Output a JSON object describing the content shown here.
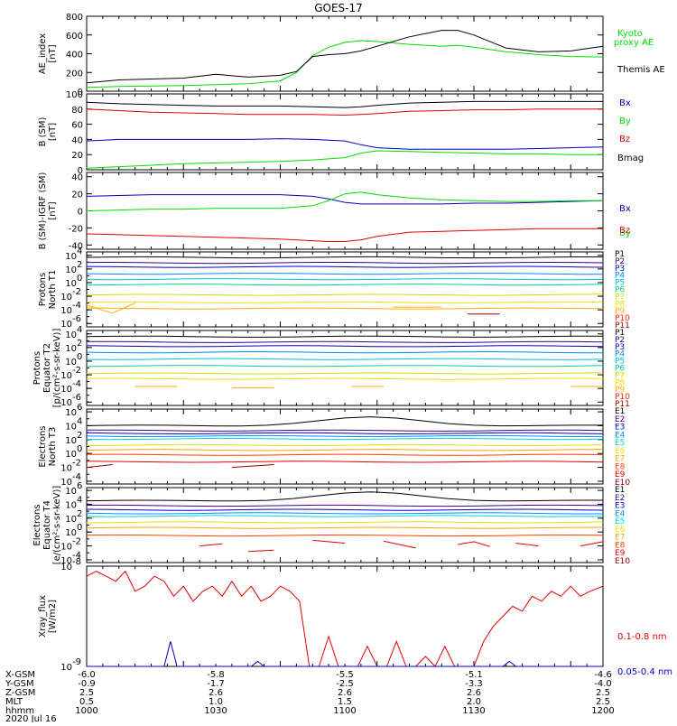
{
  "title": "GOES-17",
  "colors": {
    "black": "#000000",
    "red": "#e00000",
    "green": "#00dd00",
    "blue": "#0000c0",
    "P1": "#000000",
    "P2": "#3a0080",
    "P3": "#0000c0",
    "P4": "#0088ff",
    "P5": "#00c0e0",
    "P6": "#00d0a0",
    "P7": "#c8e000",
    "P8": "#f0e000",
    "P9": "#ffb000",
    "P10": "#ff2000",
    "P11": "#a00000",
    "E1": "#000000",
    "E2": "#4a0080",
    "E3": "#0000d0",
    "E4": "#0090ff",
    "E5": "#00d0e0",
    "E6": "#e8e000",
    "E7": "#ffa000",
    "E8": "#ff4000",
    "E9": "#e00000",
    "E10": "#900000"
  },
  "chart_data": [
    {
      "type": "line",
      "panel": "ae",
      "ylabel": [
        "AE_index",
        "[nT]"
      ],
      "ylim": [
        0,
        800
      ],
      "yticks": [
        "0",
        "200",
        "400",
        "600",
        "800"
      ],
      "x_minutes": [
        0,
        10,
        20,
        30,
        40,
        50,
        60,
        65,
        70,
        75,
        80,
        85,
        90,
        100,
        110,
        115,
        120,
        130,
        140,
        150,
        160
      ],
      "series": [
        {
          "name": "Kyoto proxy AE",
          "color": "#00dd00",
          "values": [
            40,
            50,
            55,
            60,
            70,
            80,
            110,
            200,
            380,
            470,
            520,
            540,
            530,
            500,
            480,
            490,
            470,
            420,
            390,
            370,
            365
          ]
        },
        {
          "name": "Themis AE",
          "color": "#000000",
          "values": [
            90,
            120,
            130,
            140,
            180,
            150,
            170,
            210,
            370,
            390,
            400,
            430,
            480,
            580,
            650,
            650,
            600,
            460,
            420,
            430,
            480
          ]
        }
      ]
    },
    {
      "type": "line",
      "panel": "bsm",
      "ylabel": [
        "B (SM)",
        "[nT]"
      ],
      "ylim": [
        0,
        100
      ],
      "yticks": [
        "0",
        "20",
        "40",
        "60",
        "80",
        "100"
      ],
      "x_minutes": [
        0,
        10,
        20,
        30,
        40,
        50,
        60,
        70,
        80,
        85,
        90,
        100,
        110,
        120,
        130,
        140,
        150,
        160
      ],
      "series": [
        {
          "name": "Bx",
          "color": "#0000c0",
          "values": [
            38,
            40,
            40,
            40,
            40,
            40,
            41,
            40,
            38,
            33,
            29,
            27,
            27,
            27,
            27,
            28,
            29,
            30
          ]
        },
        {
          "name": "By",
          "color": "#00dd00",
          "values": [
            2,
            4,
            6,
            8,
            9,
            10,
            11,
            13,
            16,
            22,
            25,
            24,
            23,
            22,
            21,
            21,
            20,
            20
          ]
        },
        {
          "name": "Bz",
          "color": "#e00000",
          "values": [
            80,
            78,
            76,
            75,
            74,
            73,
            73,
            73,
            72,
            73,
            74,
            77,
            78,
            79,
            79,
            80,
            80,
            80
          ]
        },
        {
          "name": "Bmag",
          "color": "#000000",
          "values": [
            89,
            87,
            86,
            85,
            84,
            84,
            84,
            83,
            82,
            83,
            85,
            88,
            89,
            90,
            90,
            90,
            90,
            90
          ]
        }
      ]
    },
    {
      "type": "line",
      "panel": "bigrf",
      "ylabel": [
        "B (SM)-IGRF (SM)",
        "[nT]"
      ],
      "ylim": [
        -45,
        45
      ],
      "yticks": [
        "-40",
        "-20",
        "0",
        "20",
        "40"
      ],
      "x_minutes": [
        0,
        10,
        20,
        30,
        40,
        50,
        60,
        70,
        75,
        80,
        85,
        90,
        100,
        110,
        120,
        130,
        140,
        150,
        160
      ],
      "series": [
        {
          "name": "Bx",
          "color": "#0000c0",
          "values": [
            17,
            18,
            19,
            19,
            19,
            19,
            19,
            17,
            14,
            10,
            8,
            8,
            8,
            8,
            9,
            9,
            10,
            11,
            12
          ]
        },
        {
          "name": "By",
          "color": "#00dd00",
          "values": [
            0,
            1,
            2,
            2,
            3,
            3,
            3,
            6,
            12,
            20,
            22,
            19,
            15,
            13,
            12,
            11,
            11,
            12,
            12
          ]
        },
        {
          "name": "Bz",
          "color": "#e00000",
          "values": [
            -27,
            -28,
            -29,
            -30,
            -31,
            -32,
            -33,
            -35,
            -36,
            -36,
            -34,
            -30,
            -25,
            -24,
            -23,
            -22,
            -21,
            -21,
            -21
          ]
        }
      ]
    },
    {
      "type": "line",
      "panel": "protonsT1",
      "log": true,
      "ylabel": [
        "Protons",
        "North T1"
      ],
      "ylim_exp": [
        -6.5,
        4.5
      ],
      "yticks": [
        {
          "exp": 4,
          "label": "10",
          "sup": "4"
        },
        {
          "exp": 2,
          "label": "10",
          "sup": "2"
        },
        {
          "exp": 0,
          "label": "10",
          "sup": "0"
        },
        {
          "exp": -2,
          "label": "10",
          "sup": "-2"
        },
        {
          "exp": -4,
          "label": "10",
          "sup": "-4"
        },
        {
          "exp": -6,
          "label": "10",
          "sup": "-6"
        }
      ],
      "legend": [
        "P1",
        "P2",
        "P3",
        "P4",
        "P5",
        "P6",
        "P7",
        "P8",
        "P9",
        "P10",
        "P11"
      ],
      "levels_exp": [
        3.7,
        2.9,
        2.3,
        1.3,
        0.5,
        -0.3,
        -1.8,
        -2.9,
        -3.8,
        null,
        null
      ],
      "segments": [
        {
          "series": "P9",
          "points": [
            [
              0,
              -3.3
            ],
            [
              8,
              -4.5
            ],
            [
              15,
              -3.0
            ]
          ]
        },
        {
          "series": "P9",
          "points": [
            [
              95,
              -3.6
            ],
            [
              110,
              -3.6
            ]
          ]
        },
        {
          "series": "P11",
          "points": [
            [
              118,
              -4.6
            ],
            [
              128,
              -4.6
            ]
          ]
        }
      ]
    },
    {
      "type": "line",
      "panel": "protonsT2",
      "log": true,
      "ylabel": [
        "Protons",
        "Equator T2",
        "[p/(cm²-s-sr-keV)]"
      ],
      "ylim_exp": [
        -6.5,
        4.5
      ],
      "yticks": [
        {
          "exp": 4,
          "label": "10",
          "sup": "4"
        },
        {
          "exp": 2,
          "label": "10",
          "sup": "2"
        },
        {
          "exp": 0,
          "label": "10",
          "sup": "0"
        },
        {
          "exp": -2,
          "label": "10",
          "sup": "-2"
        },
        {
          "exp": -4,
          "label": "10",
          "sup": "-4"
        },
        {
          "exp": -6,
          "label": "10",
          "sup": "-6"
        }
      ],
      "legend": [
        "P1",
        "P2",
        "P3",
        "P4",
        "P5",
        "P6",
        "P7",
        "P8",
        "P9",
        "P10",
        "P11"
      ],
      "levels_exp": [
        3.6,
        2.8,
        2.2,
        1.3,
        0.3,
        -0.7,
        -1.8,
        -2.6,
        null,
        null,
        null
      ],
      "segments": [
        {
          "series": "P9",
          "points": [
            [
              15,
              -3.7
            ],
            [
              28,
              -3.7
            ]
          ]
        },
        {
          "series": "P9",
          "points": [
            [
              45,
              -3.9
            ],
            [
              58,
              -3.9
            ]
          ]
        },
        {
          "series": "P9",
          "points": [
            [
              82,
              -3.7
            ],
            [
              92,
              -3.7
            ]
          ]
        },
        {
          "series": "P9",
          "points": [
            [
              150,
              -3.7
            ],
            [
              160,
              -3.7
            ]
          ]
        }
      ]
    },
    {
      "type": "line",
      "panel": "electronsT3",
      "log": true,
      "ylabel": [
        "Electrons",
        "North T3"
      ],
      "ylim_exp": [
        -4.4,
        6.4
      ],
      "yticks": [
        {
          "exp": 6,
          "label": "10",
          "sup": "6"
        },
        {
          "exp": 4,
          "label": "10",
          "sup": "4"
        },
        {
          "exp": 2,
          "label": "10",
          "sup": "2"
        },
        {
          "exp": 0,
          "label": "10",
          "sup": "0"
        },
        {
          "exp": -2,
          "label": "10",
          "sup": "-2"
        },
        {
          "exp": -4,
          "label": "10",
          "sup": "-4"
        }
      ],
      "legend": [
        "E1",
        "E2",
        "E3",
        "E4",
        "E5",
        "E6",
        "E7",
        "E8",
        "E9",
        "E10"
      ],
      "levels_exp": [
        4.0,
        3.3,
        2.9,
        2.5,
        2.1,
        1.2,
        0.5,
        -0.2,
        -1.2,
        null
      ],
      "segments": [
        {
          "series": "E10",
          "points": [
            [
              0,
              -2.0
            ],
            [
              8,
              -1.6
            ]
          ]
        },
        {
          "series": "E10",
          "points": [
            [
              45,
              -2.0
            ],
            [
              58,
              -1.6
            ]
          ]
        }
      ]
    },
    {
      "type": "line",
      "panel": "electronsT4",
      "log": true,
      "ylabel": [
        "Electrons",
        "Equator T4",
        "[e/(cm²-s-sr-keV)]"
      ],
      "ylim_exp": [
        -4.4,
        6.4
      ],
      "yticks": [
        {
          "exp": 6,
          "label": "10",
          "sup": "6"
        },
        {
          "exp": 4,
          "label": "10",
          "sup": "4"
        },
        {
          "exp": 2,
          "label": "10",
          "sup": "2"
        },
        {
          "exp": 0,
          "label": "10",
          "sup": "0"
        },
        {
          "exp": -2,
          "label": "10",
          "sup": "-2"
        },
        {
          "exp": -4,
          "label": "10",
          "sup": "-4"
        }
      ],
      "legend": [
        "E1",
        "E2",
        "E3",
        "E4",
        "E5",
        "E6",
        "E7",
        "E8",
        "E9",
        "E10"
      ],
      "levels_exp": [
        4.5,
        3.8,
        3.2,
        2.7,
        2.3,
        1.4,
        0.6,
        -0.5,
        null,
        null
      ],
      "segments": [
        {
          "series": "E9",
          "points": [
            [
              35,
              -2.0
            ],
            [
              42,
              -1.7
            ]
          ]
        },
        {
          "series": "E9",
          "points": [
            [
              50,
              -2.8
            ],
            [
              58,
              -2.6
            ]
          ]
        },
        {
          "series": "E9",
          "points": [
            [
              70,
              -1.2
            ],
            [
              80,
              -1.6
            ]
          ]
        },
        {
          "series": "E9",
          "points": [
            [
              92,
              -1.3
            ],
            [
              102,
              -2.3
            ]
          ]
        },
        {
          "series": "E9",
          "points": [
            [
              115,
              -1.8
            ],
            [
              120,
              -1.4
            ],
            [
              125,
              -2.1
            ]
          ]
        },
        {
          "series": "E9",
          "points": [
            [
              133,
              -1.6
            ],
            [
              140,
              -2.0
            ]
          ]
        },
        {
          "series": "E9",
          "points": [
            [
              153,
              -2.0
            ],
            [
              160,
              -1.4
            ]
          ]
        }
      ]
    },
    {
      "type": "line",
      "panel": "xray",
      "log": true,
      "ylabel": [
        "Xray_flux",
        "[W/m2]"
      ],
      "ylim_exp": [
        -9,
        -8
      ],
      "yticks": [
        {
          "exp": -8,
          "label": "10",
          "sup": "-8"
        },
        {
          "exp": -9,
          "label": "10",
          "sup": "-9"
        }
      ],
      "series": [
        {
          "name": "0.1-0.8 nm",
          "color": "#e00000",
          "x_minutes": [
            0,
            3,
            6,
            9,
            12,
            15,
            18,
            21,
            24,
            27,
            30,
            33,
            36,
            39,
            42,
            45,
            48,
            51,
            54,
            57,
            60,
            63,
            66,
            69,
            72,
            75,
            78,
            81,
            84,
            87,
            90,
            93,
            96,
            99,
            102,
            105,
            108,
            111,
            114,
            117,
            120,
            123,
            126,
            129,
            132,
            135,
            138,
            141,
            144,
            147,
            150,
            153,
            156,
            160
          ],
          "values": [
            -8.1,
            -8.05,
            -8.1,
            -8.15,
            -8.05,
            -8.25,
            -8.2,
            -8.1,
            -8.15,
            -8.3,
            -8.2,
            -8.35,
            -8.25,
            -8.2,
            -8.3,
            -8.15,
            -8.3,
            -8.2,
            -8.35,
            -8.3,
            -8.2,
            -8.25,
            -8.35,
            -9.0,
            -9.0,
            -8.7,
            -9.0,
            -9.0,
            -9.0,
            -8.8,
            -9.0,
            -9.0,
            -8.75,
            -9.0,
            -9.0,
            -8.9,
            -9.0,
            -8.8,
            -9.0,
            -9.0,
            -9.0,
            -8.75,
            -8.6,
            -8.5,
            -8.4,
            -8.45,
            -8.3,
            -8.35,
            -8.25,
            -8.3,
            -8.2,
            -8.3,
            -8.25,
            -8.2
          ]
        },
        {
          "name": "0.05-0.4 nm",
          "color": "#0000c0",
          "x_minutes": [
            0,
            20,
            24,
            26,
            28,
            32,
            49,
            51,
            53,
            55,
            126,
            129,
            131,
            133,
            160
          ],
          "values": [
            -9.6,
            -9.6,
            -9.2,
            -8.75,
            -9.2,
            -9.6,
            -9.6,
            -9.2,
            -8.95,
            -9.6,
            -9.6,
            -9.2,
            -8.95,
            -9.6,
            -9.6
          ]
        }
      ]
    }
  ],
  "panels_legend": {
    "ae": [
      {
        "text": "Kyoto",
        "color": "#00dd00"
      },
      {
        "text": "proxy AE",
        "color": "#00dd00"
      },
      {
        "text": "Themis AE",
        "color": "#000000"
      }
    ],
    "bsm": [
      {
        "text": "Bx",
        "color": "#0000c0"
      },
      {
        "text": "By",
        "color": "#00dd00"
      },
      {
        "text": "Bz",
        "color": "#e00000"
      },
      {
        "text": "Bmag",
        "color": "#000000"
      }
    ],
    "bigrf": [
      {
        "text": "Bx",
        "color": "#0000c0"
      },
      {
        "text": "By",
        "color": "#00dd00"
      },
      {
        "text": "Bz",
        "color": "#e00000"
      }
    ],
    "xray": [
      {
        "text": "0.1-0.8 nm",
        "color": "#e00000"
      },
      {
        "text": "0.05-0.4 nm",
        "color": "#0000c0"
      }
    ]
  },
  "footer": {
    "row_labels": [
      "X-GSM",
      "Y-GSM",
      "Z-GSM",
      "MLT",
      "hhmm",
      "2020 Jul 16"
    ],
    "columns": [
      [
        "-6.0",
        "-0.9",
        "2.5",
        "0.5",
        "1000"
      ],
      [
        "-5.8",
        "-1.7",
        "2.6",
        "1.0",
        "1030"
      ],
      [
        "-5.5",
        "-2.5",
        "2.6",
        "1.5",
        "1100"
      ],
      [
        "-5.1",
        "-3.3",
        "2.6",
        "2.0",
        "1130"
      ],
      [
        "-4.6",
        "-4.0",
        "2.5",
        "2.5",
        "1200"
      ]
    ]
  }
}
